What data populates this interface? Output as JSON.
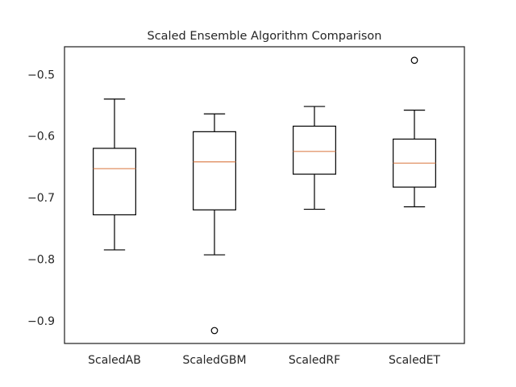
{
  "chart_data": {
    "type": "box",
    "title": "Scaled Ensemble Algorithm Comparison",
    "xlabel": "",
    "ylabel": "",
    "categories": [
      "ScaledAB",
      "ScaledGBM",
      "ScaledRF",
      "ScaledET"
    ],
    "boxes": [
      {
        "whisker_low": -0.785,
        "q1": -0.728,
        "median": -0.653,
        "q3": -0.62,
        "whisker_high": -0.54,
        "outliers": []
      },
      {
        "whisker_low": -0.793,
        "q1": -0.72,
        "median": -0.642,
        "q3": -0.593,
        "whisker_high": -0.564,
        "outliers": [
          -0.916
        ]
      },
      {
        "whisker_low": -0.719,
        "q1": -0.662,
        "median": -0.625,
        "q3": -0.584,
        "whisker_high": -0.552,
        "outliers": []
      },
      {
        "whisker_low": -0.715,
        "q1": -0.683,
        "median": -0.644,
        "q3": -0.605,
        "whisker_high": -0.558,
        "outliers": [
          -0.477
        ]
      }
    ],
    "ylim": [
      -0.937,
      -0.455
    ],
    "yticks": [
      -0.5,
      -0.6,
      -0.7,
      -0.8,
      -0.9
    ],
    "ytick_labels": [
      "−0.5",
      "−0.6",
      "−0.7",
      "−0.8",
      "−0.9"
    ],
    "grid": false,
    "colors": {
      "box": "#000000",
      "median": "#dd8452",
      "axes": "#262626",
      "text": "#262626"
    }
  }
}
